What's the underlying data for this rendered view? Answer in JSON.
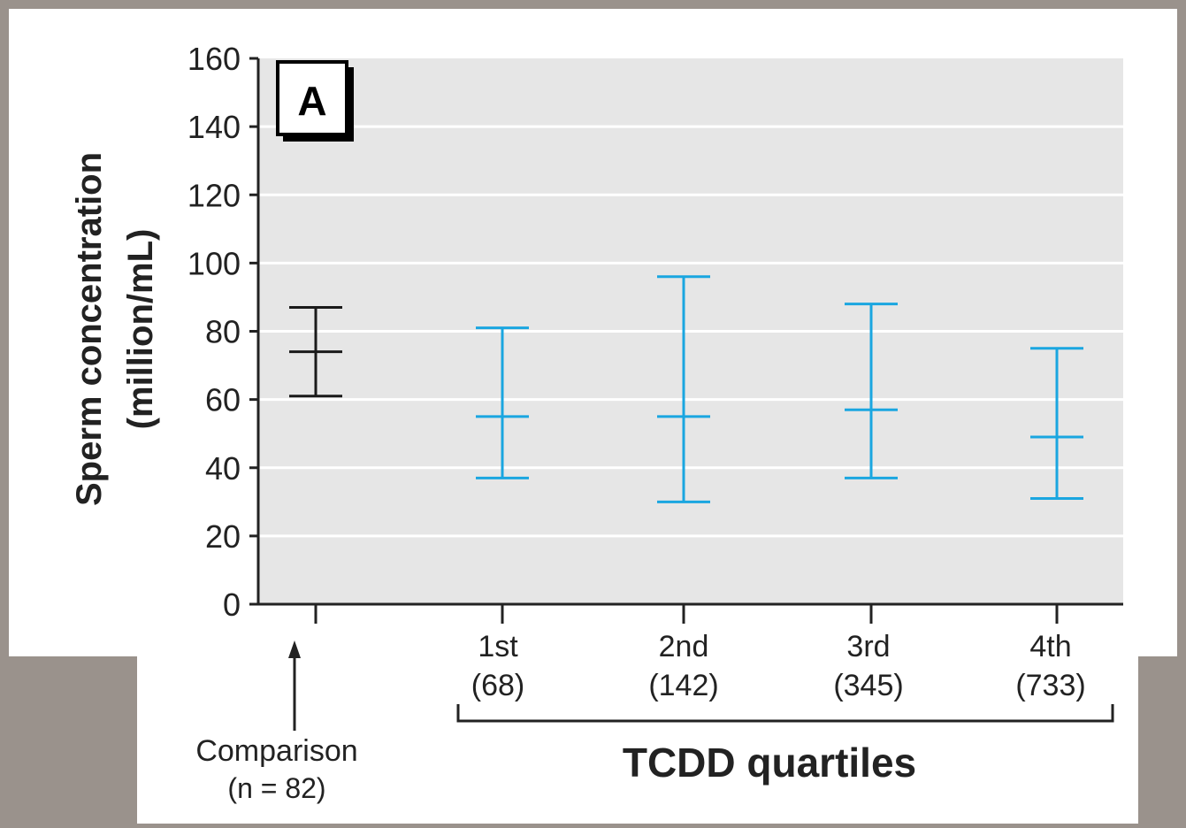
{
  "chart_data": {
    "type": "errorbar",
    "panel_label": "A",
    "ylabel_line1": "Sperm concentration",
    "ylabel_line2": "(million/mL)",
    "xlabel": "TCDD quartiles",
    "ylim": [
      0,
      160
    ],
    "yticks": [
      0,
      20,
      40,
      60,
      80,
      100,
      120,
      140,
      160
    ],
    "grid": true,
    "comparison": {
      "label": "Comparison",
      "sublabel": "(n = 82)",
      "mean": 74,
      "lower": 61,
      "upper": 87,
      "color": "#1a1a1a"
    },
    "categories": [
      {
        "label": "1st",
        "sublabel": "(68)",
        "mean": 55,
        "lower": 37,
        "upper": 81
      },
      {
        "label": "2nd",
        "sublabel": "(142)",
        "mean": 55,
        "lower": 30,
        "upper": 96
      },
      {
        "label": "3rd",
        "sublabel": "(345)",
        "mean": 57,
        "lower": 37,
        "upper": 88
      },
      {
        "label": "4th",
        "sublabel": "(733)",
        "mean": 49,
        "lower": 31,
        "upper": 75
      }
    ],
    "series_color": "#1aa6e0",
    "plot_background": "#e6e6e6",
    "grid_color": "#ffffff"
  }
}
